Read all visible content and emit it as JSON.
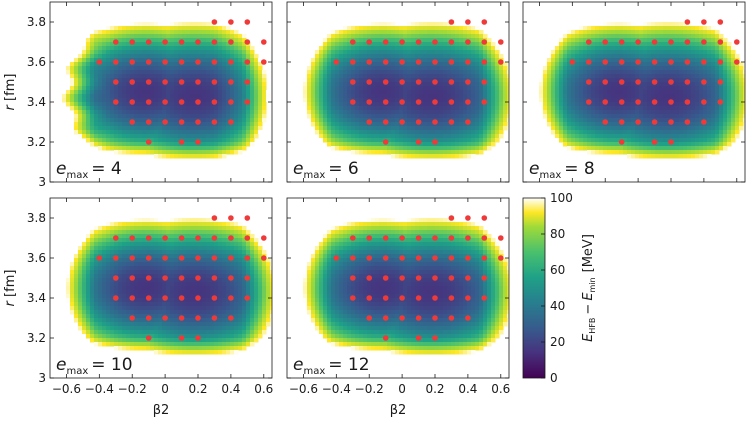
{
  "chart_data": {
    "type": "heatmap",
    "description_free": true,
    "panels": [
      {
        "label_main": "e",
        "label_sub": "max",
        "label_value": "= 4"
      },
      {
        "label_main": "e",
        "label_sub": "max",
        "label_value": "= 6"
      },
      {
        "label_main": "e",
        "label_sub": "max",
        "label_value": "= 8"
      },
      {
        "label_main": "e",
        "label_sub": "max",
        "label_value": "= 10"
      },
      {
        "label_main": "e",
        "label_sub": "max",
        "label_value": "= 12"
      }
    ],
    "xlabel": "β2",
    "ylabel_main": "r",
    "ylabel_unit": "[fm]",
    "xlim": [
      -0.7,
      0.65
    ],
    "ylim": [
      3.0,
      3.9
    ],
    "xticks": [
      -0.6,
      -0.4,
      -0.2,
      0,
      0.2,
      0.4,
      0.6
    ],
    "xtick_labels": [
      "−0.6",
      "−0.4",
      "−0.2",
      "0",
      "0.2",
      "0.4",
      "0.6"
    ],
    "yticks": [
      3.0,
      3.2,
      3.4,
      3.6,
      3.8
    ],
    "ytick_labels": [
      "3",
      "3.2",
      "3.4",
      "3.6",
      "3.8"
    ],
    "colorbar": {
      "label_e": "E",
      "label_sub1": "HFB",
      "label_minus": "−",
      "label_e2": "E",
      "label_sub2": "min",
      "label_unit": "[MeV]",
      "range": [
        0,
        100
      ],
      "ticks": [
        0,
        20,
        40,
        60,
        80,
        100
      ],
      "tick_labels": [
        "0",
        "20",
        "40",
        "60",
        "80",
        "100"
      ]
    },
    "sample_points": [
      {
        "x": 0.3,
        "y": 3.8
      },
      {
        "x": 0.4,
        "y": 3.8
      },
      {
        "x": 0.5,
        "y": 3.8
      },
      {
        "x": -0.3,
        "y": 3.7
      },
      {
        "x": -0.2,
        "y": 3.7
      },
      {
        "x": -0.1,
        "y": 3.7
      },
      {
        "x": 0.0,
        "y": 3.7
      },
      {
        "x": 0.1,
        "y": 3.7
      },
      {
        "x": 0.2,
        "y": 3.7
      },
      {
        "x": 0.3,
        "y": 3.7
      },
      {
        "x": 0.4,
        "y": 3.7
      },
      {
        "x": 0.5,
        "y": 3.7
      },
      {
        "x": 0.6,
        "y": 3.7
      },
      {
        "x": -0.4,
        "y": 3.6
      },
      {
        "x": -0.3,
        "y": 3.6
      },
      {
        "x": -0.2,
        "y": 3.6
      },
      {
        "x": -0.1,
        "y": 3.6
      },
      {
        "x": 0.0,
        "y": 3.6
      },
      {
        "x": 0.1,
        "y": 3.6
      },
      {
        "x": 0.2,
        "y": 3.6
      },
      {
        "x": 0.3,
        "y": 3.6
      },
      {
        "x": 0.4,
        "y": 3.6
      },
      {
        "x": 0.5,
        "y": 3.6
      },
      {
        "x": 0.6,
        "y": 3.6
      },
      {
        "x": -0.3,
        "y": 3.5
      },
      {
        "x": -0.2,
        "y": 3.5
      },
      {
        "x": -0.1,
        "y": 3.5
      },
      {
        "x": 0.0,
        "y": 3.5
      },
      {
        "x": 0.1,
        "y": 3.5
      },
      {
        "x": 0.2,
        "y": 3.5
      },
      {
        "x": 0.3,
        "y": 3.5
      },
      {
        "x": 0.4,
        "y": 3.5
      },
      {
        "x": 0.5,
        "y": 3.5
      },
      {
        "x": -0.3,
        "y": 3.4
      },
      {
        "x": -0.2,
        "y": 3.4
      },
      {
        "x": -0.1,
        "y": 3.4
      },
      {
        "x": 0.0,
        "y": 3.4
      },
      {
        "x": 0.1,
        "y": 3.4
      },
      {
        "x": 0.2,
        "y": 3.4
      },
      {
        "x": 0.3,
        "y": 3.4
      },
      {
        "x": 0.4,
        "y": 3.4
      },
      {
        "x": 0.5,
        "y": 3.4
      },
      {
        "x": -0.2,
        "y": 3.3
      },
      {
        "x": -0.1,
        "y": 3.3
      },
      {
        "x": 0.0,
        "y": 3.3
      },
      {
        "x": 0.1,
        "y": 3.3
      },
      {
        "x": 0.2,
        "y": 3.3
      },
      {
        "x": 0.3,
        "y": 3.3
      },
      {
        "x": 0.4,
        "y": 3.3
      },
      {
        "x": -0.1,
        "y": 3.2
      },
      {
        "x": 0.1,
        "y": 3.2
      },
      {
        "x": 0.2,
        "y": 3.2
      }
    ],
    "grid": false,
    "point_color": "#f03a3a",
    "colormap": [
      "#440154",
      "#46327e",
      "#365c8d",
      "#277f8e",
      "#1fa187",
      "#4ac16d",
      "#a0da39",
      "#fde725"
    ]
  }
}
